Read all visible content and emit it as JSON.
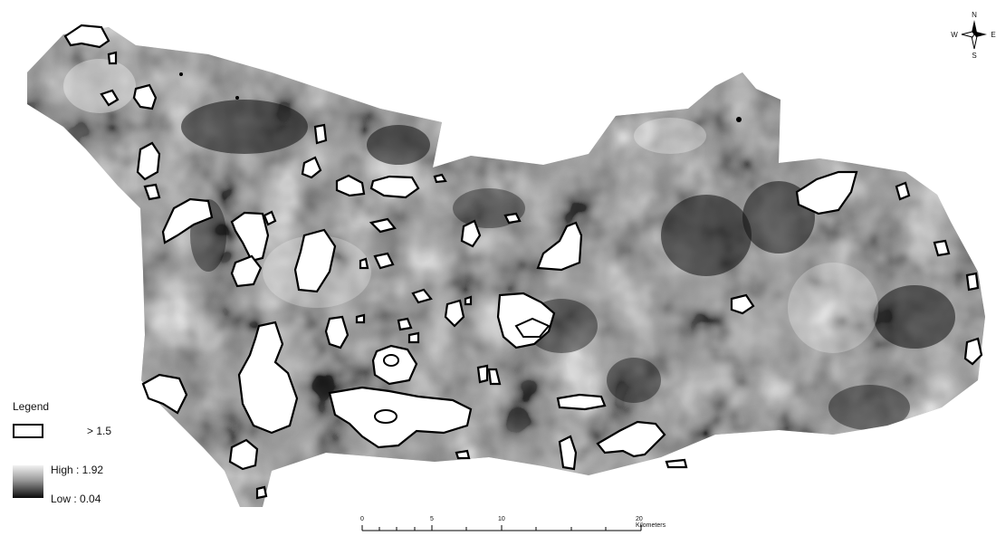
{
  "legend": {
    "title": "Legend",
    "polygon_label": "> 1.5",
    "ramp_high": "High : 1.92",
    "ramp_low": "Low : 0.04",
    "ramp_colors": [
      "#f2f2f2",
      "#0a0a0a"
    ]
  },
  "compass": {
    "n": "N",
    "s": "S",
    "w": "W",
    "e": "E"
  },
  "scalebar": {
    "labels": [
      "0",
      "5",
      "10",
      "20 Kilometers"
    ]
  },
  "colors": {
    "outline": "#000000",
    "highlight_fill": "#ffffff"
  }
}
